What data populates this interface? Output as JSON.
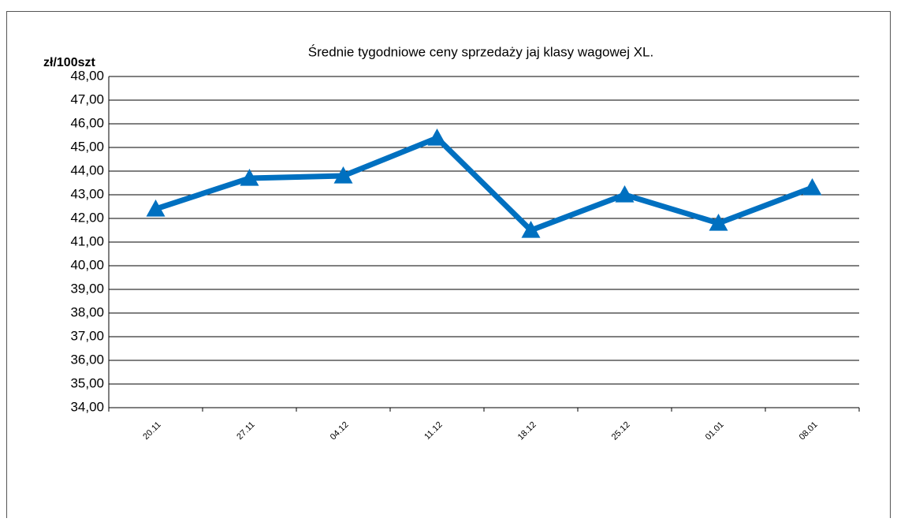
{
  "chart_data": {
    "type": "line",
    "title": "Średnie tygodniowe ceny sprzedaży jaj klasy wagowej XL.",
    "ylabel": "zł/100szt",
    "categories": [
      "20.11",
      "27.11",
      "04.12",
      "11.12",
      "18.12",
      "25.12",
      "01.01",
      "08.01"
    ],
    "values": [
      42.4,
      43.7,
      43.8,
      45.4,
      41.5,
      43.0,
      41.8,
      43.3
    ],
    "color": "#0070c0",
    "marker": "triangle",
    "ylim": [
      34,
      48
    ],
    "yticks": [
      {
        "value": 34,
        "label": "34,00"
      },
      {
        "value": 35,
        "label": "35,00"
      },
      {
        "value": 36,
        "label": "36,00"
      },
      {
        "value": 37,
        "label": "37,00"
      },
      {
        "value": 38,
        "label": "38,00"
      },
      {
        "value": 39,
        "label": "39,00"
      },
      {
        "value": 40,
        "label": "40,00"
      },
      {
        "value": 41,
        "label": "41,00"
      },
      {
        "value": 42,
        "label": "42,00"
      },
      {
        "value": 43,
        "label": "43,00"
      },
      {
        "value": 44,
        "label": "44,00"
      },
      {
        "value": 45,
        "label": "45,00"
      },
      {
        "value": 46,
        "label": "46,00"
      },
      {
        "value": 47,
        "label": "47,00"
      },
      {
        "value": 48,
        "label": "48,00"
      }
    ],
    "grid": true
  }
}
